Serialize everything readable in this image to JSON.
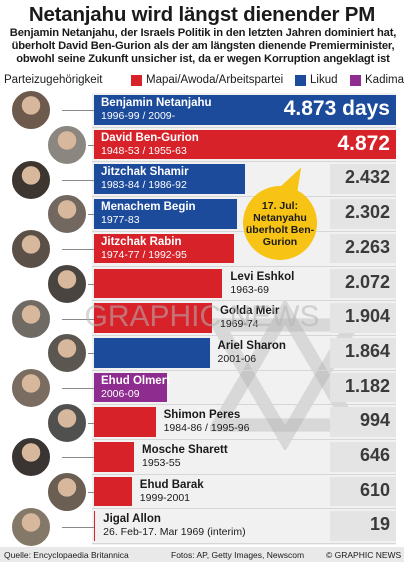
{
  "title": "Netanjahu wird längst dienender PM",
  "subtitle": "Benjamin Netanjahu, der Israels Politik in den letzten Jahren dominiert hat, überholt David Ben-Gurion als der am längsten dienende Premierminister, obwohl seine Zukunft unsicher ist, da er wegen Korruption angeklagt ist",
  "legend": {
    "label": "Parteizugehörigkeit",
    "items": [
      {
        "name": "Mapai/Awoda/Arbeitspartei",
        "color": "#d7222a"
      },
      {
        "name": "Likud",
        "color": "#1c4b9c"
      },
      {
        "name": "Kadima",
        "color": "#8e2c8f"
      }
    ]
  },
  "callout": "17. Jul: Netanyahu überholt Ben-Gurion",
  "watermark": "GRAPHIC NEWS",
  "footer": {
    "source": "Quelle: Encyclopaedia Britannica",
    "photos": "Fotos: AP, Getty Images, Newscom",
    "credit": "© GRAPHIC NEWS"
  },
  "chart_data": {
    "type": "bar",
    "unit": "days",
    "categories": [
      "Benjamin Netanjahu",
      "David Ben-Gurion",
      "Jitzchak Shamir",
      "Menachem Begin",
      "Jitzchak Rabin",
      "Levi Eshkol",
      "Golda Meir",
      "Ariel Sharon",
      "Ehud Olmert",
      "Shimon Peres",
      "Mosche Sharett",
      "Ehud Barak",
      "Jigal Allon"
    ],
    "terms": [
      "1996-99 / 2009-",
      "1948-53 / 1955-63",
      "1983-84 / 1986-92",
      "1977-83",
      "1974-77 / 1992-95",
      "1963-69",
      "1969-74",
      "2001-06",
      "2006-09",
      "1984-86 / 1995-96",
      "1953-55",
      "1999-2001",
      "26. Feb-17. Mar 1969  (interim)"
    ],
    "values": [
      4873,
      4872,
      2432,
      2302,
      2263,
      2072,
      1904,
      1864,
      1182,
      994,
      646,
      610,
      19
    ],
    "value_labels": [
      "4.873 days",
      "4.872",
      "2.432",
      "2.302",
      "2.263",
      "2.072",
      "1.904",
      "1.864",
      "1.182",
      "994",
      "646",
      "610",
      "19"
    ],
    "party": [
      "Likud",
      "Mapai/Awoda/Arbeitspartei",
      "Likud",
      "Likud",
      "Mapai/Awoda/Arbeitspartei",
      "Mapai/Awoda/Arbeitspartei",
      "Mapai/Awoda/Arbeitspartei",
      "Likud",
      "Kadima",
      "Mapai/Awoda/Arbeitspartei",
      "Mapai/Awoda/Arbeitspartei",
      "Mapai/Awoda/Arbeitspartei",
      "Mapai/Awoda/Arbeitspartei"
    ],
    "party_colors": {
      "Mapai/Awoda/Arbeitspartei": "#d7222a",
      "Likud": "#1c4b9c",
      "Kadima": "#8e2c8f"
    },
    "xlim": [
      0,
      4873
    ]
  }
}
